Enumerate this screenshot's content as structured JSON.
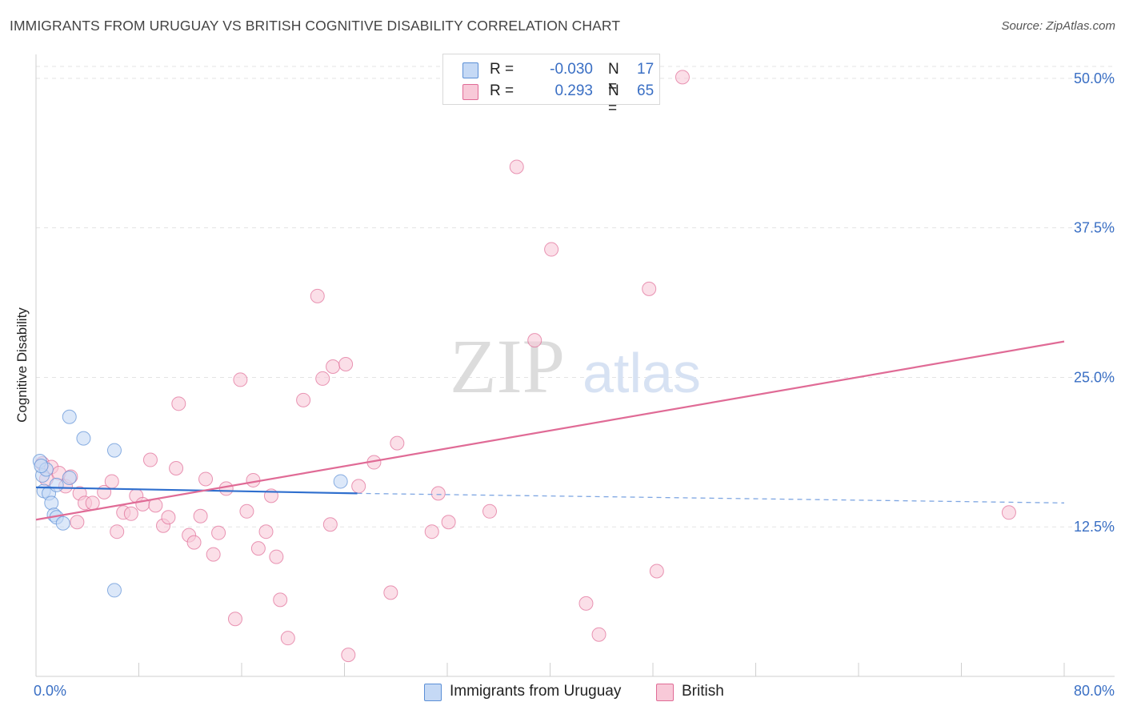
{
  "header": {
    "title": "IMMIGRANTS FROM URUGUAY VS BRITISH COGNITIVE DISABILITY CORRELATION CHART",
    "source": "Source: ZipAtlas.com"
  },
  "watermark": {
    "zip": "ZIP",
    "atlas": "atlas"
  },
  "legend": {
    "r_label": "R =",
    "n_label": "N =",
    "series": [
      {
        "name": "Immigrants from Uruguay",
        "r": "-0.030",
        "n": "17",
        "color": "#5b8fd6",
        "fill": "#c5d9f5"
      },
      {
        "name": "British",
        "r": "0.293",
        "n": "65",
        "color": "#e06b96",
        "fill": "#f8c9d8"
      }
    ]
  },
  "chart_data": {
    "type": "scatter",
    "title": "IMMIGRANTS FROM URUGUAY VS BRITISH COGNITIVE DISABILITY CORRELATION CHART",
    "xlabel": "",
    "ylabel": "Cognitive Disability",
    "xlim": [
      0,
      80
    ],
    "ylim": [
      0,
      52
    ],
    "x_tick_labels": [
      "0.0%",
      "80.0%"
    ],
    "y_ticks": [
      12.5,
      25.0,
      37.5,
      50.0
    ],
    "y_tick_labels": [
      "12.5%",
      "25.0%",
      "37.5%",
      "50.0%"
    ],
    "grid": true,
    "legend_position": "top-center",
    "series": [
      {
        "name": "Immigrants from Uruguay",
        "color": "#5b8fd6",
        "points": [
          [
            0.3,
            18.0
          ],
          [
            0.5,
            16.8
          ],
          [
            0.6,
            15.5
          ],
          [
            0.8,
            17.3
          ],
          [
            1.0,
            15.3
          ],
          [
            1.2,
            14.5
          ],
          [
            1.4,
            13.5
          ],
          [
            1.6,
            16.0
          ],
          [
            1.6,
            13.3
          ],
          [
            2.1,
            12.8
          ],
          [
            2.6,
            16.6
          ],
          [
            2.6,
            21.7
          ],
          [
            3.7,
            19.9
          ],
          [
            6.1,
            18.9
          ],
          [
            6.1,
            7.2
          ],
          [
            23.7,
            16.3
          ],
          [
            0.4,
            17.6
          ]
        ],
        "trend": {
          "x_start": 0,
          "y_start": 15.8,
          "x_end_solid": 25,
          "y_end_solid": 15.3,
          "x_end": 80,
          "y_end": 14.5
        }
      },
      {
        "name": "British",
        "color": "#e06b96",
        "points": [
          [
            0.5,
            17.8
          ],
          [
            0.8,
            16.5
          ],
          [
            1.2,
            17.5
          ],
          [
            1.8,
            17.0
          ],
          [
            2.3,
            15.9
          ],
          [
            2.7,
            16.7
          ],
          [
            3.2,
            12.9
          ],
          [
            3.4,
            15.3
          ],
          [
            3.8,
            14.5
          ],
          [
            4.4,
            14.5
          ],
          [
            5.3,
            15.4
          ],
          [
            5.9,
            16.3
          ],
          [
            6.3,
            12.1
          ],
          [
            6.8,
            13.7
          ],
          [
            7.4,
            13.6
          ],
          [
            7.8,
            15.1
          ],
          [
            8.3,
            14.4
          ],
          [
            8.9,
            18.1
          ],
          [
            9.3,
            14.3
          ],
          [
            9.9,
            12.6
          ],
          [
            10.3,
            13.3
          ],
          [
            10.9,
            17.4
          ],
          [
            11.1,
            22.8
          ],
          [
            11.9,
            11.8
          ],
          [
            12.3,
            11.2
          ],
          [
            12.8,
            13.4
          ],
          [
            13.2,
            16.5
          ],
          [
            13.8,
            10.2
          ],
          [
            14.2,
            12.0
          ],
          [
            14.8,
            15.7
          ],
          [
            15.5,
            4.8
          ],
          [
            15.9,
            24.8
          ],
          [
            16.4,
            13.8
          ],
          [
            16.9,
            16.4
          ],
          [
            17.3,
            10.7
          ],
          [
            17.9,
            12.1
          ],
          [
            18.3,
            15.1
          ],
          [
            18.7,
            10.0
          ],
          [
            19.0,
            6.4
          ],
          [
            19.6,
            3.2
          ],
          [
            20.8,
            23.1
          ],
          [
            21.9,
            31.8
          ],
          [
            22.3,
            24.9
          ],
          [
            22.9,
            12.7
          ],
          [
            23.1,
            25.9
          ],
          [
            24.1,
            26.1
          ],
          [
            24.3,
            1.8
          ],
          [
            25.1,
            15.9
          ],
          [
            26.3,
            17.9
          ],
          [
            27.6,
            7.0
          ],
          [
            28.1,
            19.5
          ],
          [
            30.8,
            12.1
          ],
          [
            31.3,
            15.3
          ],
          [
            32.1,
            12.9
          ],
          [
            35.3,
            13.8
          ],
          [
            37.4,
            42.6
          ],
          [
            38.8,
            28.1
          ],
          [
            40.1,
            35.7
          ],
          [
            42.8,
            6.1
          ],
          [
            43.8,
            3.5
          ],
          [
            47.7,
            32.4
          ],
          [
            48.3,
            8.8
          ],
          [
            50.3,
            50.1
          ],
          [
            75.7,
            13.7
          ],
          [
            38.4,
            48.6
          ]
        ],
        "trend": {
          "x_start": 0,
          "y_start": 13.1,
          "x_end": 80,
          "y_end": 28.0
        }
      }
    ]
  }
}
